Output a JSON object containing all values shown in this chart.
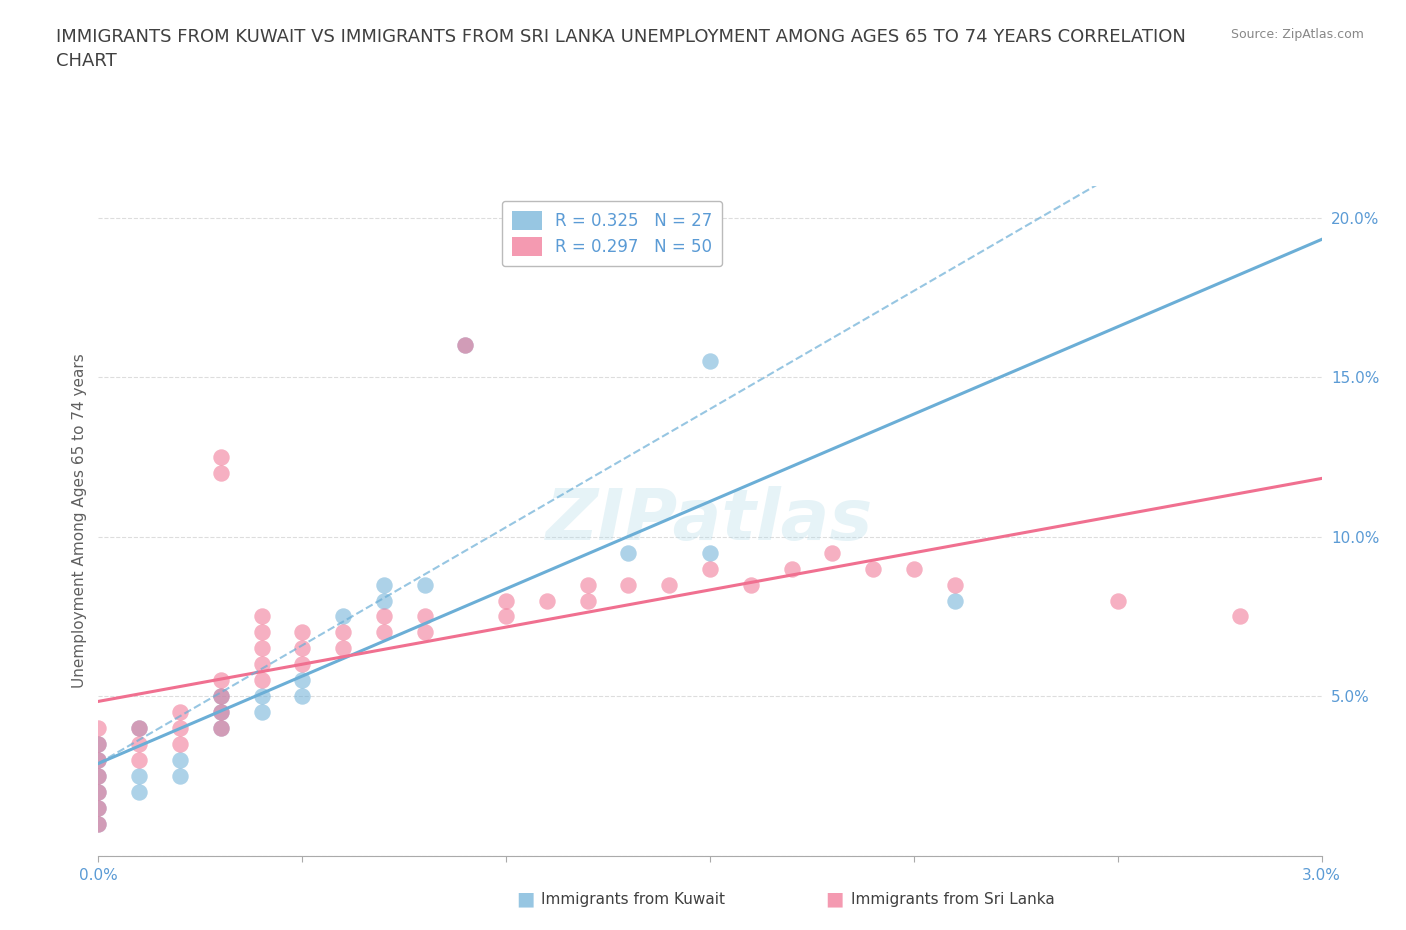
{
  "title": "IMMIGRANTS FROM KUWAIT VS IMMIGRANTS FROM SRI LANKA UNEMPLOYMENT AMONG AGES 65 TO 74 YEARS CORRELATION\nCHART",
  "source_text": "Source: ZipAtlas.com",
  "ylabel": "Unemployment Among Ages 65 to 74 years",
  "xlim": [
    0.0,
    0.03
  ],
  "ylim": [
    0.0,
    0.21
  ],
  "xticks": [
    0.0,
    0.005,
    0.01,
    0.015,
    0.02,
    0.025,
    0.03
  ],
  "xticklabels": [
    "0.0%",
    "",
    "",
    "",
    "",
    "",
    "3.0%"
  ],
  "yticks": [
    0.0,
    0.05,
    0.1,
    0.15,
    0.2
  ],
  "yticklabels": [
    "",
    "5.0%",
    "10.0%",
    "15.0%",
    "20.0%"
  ],
  "kuwait_color": "#6baed6",
  "srilanka_color": "#f07090",
  "kuwait_R": 0.325,
  "kuwait_N": 27,
  "srilanka_R": 0.297,
  "srilanka_N": 50,
  "kuwait_scatter": [
    [
      0.0,
      0.01
    ],
    [
      0.0,
      0.015
    ],
    [
      0.0,
      0.02
    ],
    [
      0.0,
      0.025
    ],
    [
      0.0,
      0.03
    ],
    [
      0.0,
      0.035
    ],
    [
      0.001,
      0.04
    ],
    [
      0.001,
      0.02
    ],
    [
      0.001,
      0.025
    ],
    [
      0.002,
      0.025
    ],
    [
      0.002,
      0.03
    ],
    [
      0.003,
      0.04
    ],
    [
      0.003,
      0.045
    ],
    [
      0.003,
      0.05
    ],
    [
      0.004,
      0.045
    ],
    [
      0.004,
      0.05
    ],
    [
      0.005,
      0.05
    ],
    [
      0.005,
      0.055
    ],
    [
      0.006,
      0.075
    ],
    [
      0.007,
      0.08
    ],
    [
      0.007,
      0.085
    ],
    [
      0.008,
      0.085
    ],
    [
      0.009,
      0.16
    ],
    [
      0.013,
      0.095
    ],
    [
      0.015,
      0.155
    ],
    [
      0.015,
      0.095
    ],
    [
      0.021,
      0.08
    ]
  ],
  "srilanka_scatter": [
    [
      0.0,
      0.01
    ],
    [
      0.0,
      0.015
    ],
    [
      0.0,
      0.02
    ],
    [
      0.0,
      0.025
    ],
    [
      0.0,
      0.03
    ],
    [
      0.0,
      0.035
    ],
    [
      0.0,
      0.04
    ],
    [
      0.001,
      0.03
    ],
    [
      0.001,
      0.035
    ],
    [
      0.001,
      0.04
    ],
    [
      0.002,
      0.035
    ],
    [
      0.002,
      0.04
    ],
    [
      0.002,
      0.045
    ],
    [
      0.003,
      0.04
    ],
    [
      0.003,
      0.045
    ],
    [
      0.003,
      0.05
    ],
    [
      0.003,
      0.055
    ],
    [
      0.003,
      0.12
    ],
    [
      0.003,
      0.125
    ],
    [
      0.004,
      0.055
    ],
    [
      0.004,
      0.06
    ],
    [
      0.004,
      0.065
    ],
    [
      0.004,
      0.07
    ],
    [
      0.004,
      0.075
    ],
    [
      0.005,
      0.06
    ],
    [
      0.005,
      0.065
    ],
    [
      0.005,
      0.07
    ],
    [
      0.006,
      0.065
    ],
    [
      0.006,
      0.07
    ],
    [
      0.007,
      0.07
    ],
    [
      0.007,
      0.075
    ],
    [
      0.008,
      0.07
    ],
    [
      0.008,
      0.075
    ],
    [
      0.009,
      0.16
    ],
    [
      0.01,
      0.075
    ],
    [
      0.01,
      0.08
    ],
    [
      0.011,
      0.08
    ],
    [
      0.012,
      0.08
    ],
    [
      0.012,
      0.085
    ],
    [
      0.013,
      0.085
    ],
    [
      0.014,
      0.085
    ],
    [
      0.015,
      0.09
    ],
    [
      0.016,
      0.085
    ],
    [
      0.017,
      0.09
    ],
    [
      0.018,
      0.095
    ],
    [
      0.019,
      0.09
    ],
    [
      0.02,
      0.09
    ],
    [
      0.021,
      0.085
    ],
    [
      0.025,
      0.08
    ],
    [
      0.028,
      0.075
    ]
  ],
  "background_color": "#ffffff",
  "grid_color": "#dddddd",
  "tick_color": "#5b9bd5",
  "title_color": "#404040",
  "title_fontsize": 13,
  "ylabel_fontsize": 11,
  "legend_fontsize": 12,
  "watermark_text": "ZIPatlas",
  "watermark_color": "#add8e6",
  "watermark_alpha": 0.3
}
